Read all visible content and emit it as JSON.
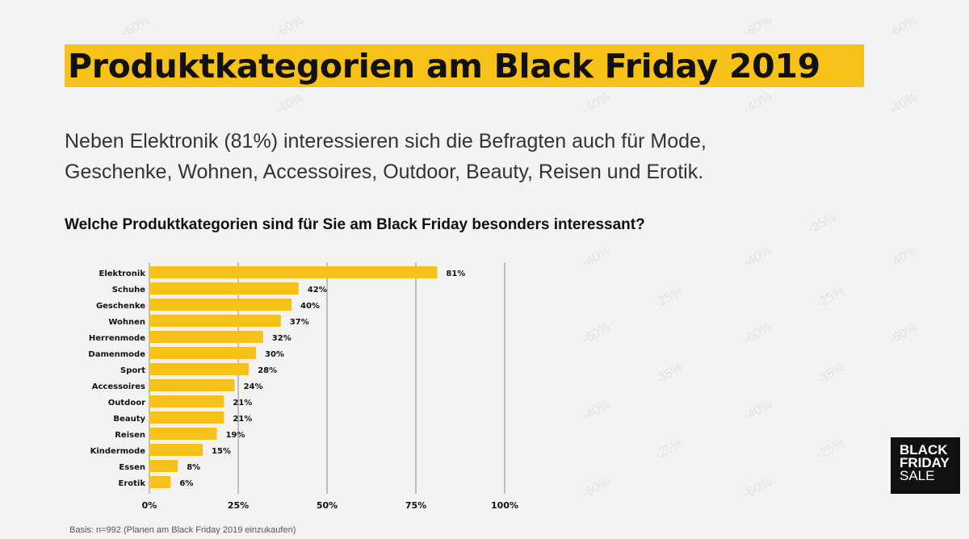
{
  "title": "Produktkategorien am Black Friday 2019",
  "subtitle_line1": "Neben Elektronik (81%) interessieren sich die Befragten auch für Mode,",
  "subtitle_line2": "Geschenke, Wohnen, Accessoires, Outdoor, Beauty, Reisen und Erotik.",
  "question": "Welche Produktkategorien sind für Sie am Black Friday besonders interessant?",
  "basis": "Basis: n=992 (Planen am Black Friday 2019 einzukaufen)",
  "logo": {
    "line1": "BLACK",
    "line2": "FRIDAY",
    "line3": "SALE"
  },
  "colors": {
    "bar": "#f6c21a",
    "accent": "#f6c21a",
    "grid": "#888888"
  },
  "chart_data": {
    "type": "bar",
    "orientation": "horizontal",
    "title": "Welche Produktkategorien sind für Sie am Black Friday besonders interessant?",
    "categories": [
      "Elektronik",
      "Schuhe",
      "Geschenke",
      "Wohnen",
      "Herrenmode",
      "Damenmode",
      "Sport",
      "Accessoires",
      "Outdoor",
      "Beauty",
      "Reisen",
      "Kindermode",
      "Essen",
      "Erotik"
    ],
    "values": [
      81,
      42,
      40,
      37,
      32,
      30,
      28,
      24,
      21,
      21,
      19,
      15,
      8,
      6
    ],
    "value_labels": [
      "81%",
      "42%",
      "40%",
      "37%",
      "32%",
      "30%",
      "28%",
      "24%",
      "21%",
      "21%",
      "19%",
      "15%",
      "8%",
      "6%"
    ],
    "xlim": [
      0,
      100
    ],
    "xticks": [
      0,
      25,
      50,
      75,
      100
    ],
    "xtick_labels": [
      "0%",
      "25%",
      "50%",
      "75%",
      "100%"
    ],
    "grid": true,
    "xlabel": "",
    "ylabel": ""
  }
}
